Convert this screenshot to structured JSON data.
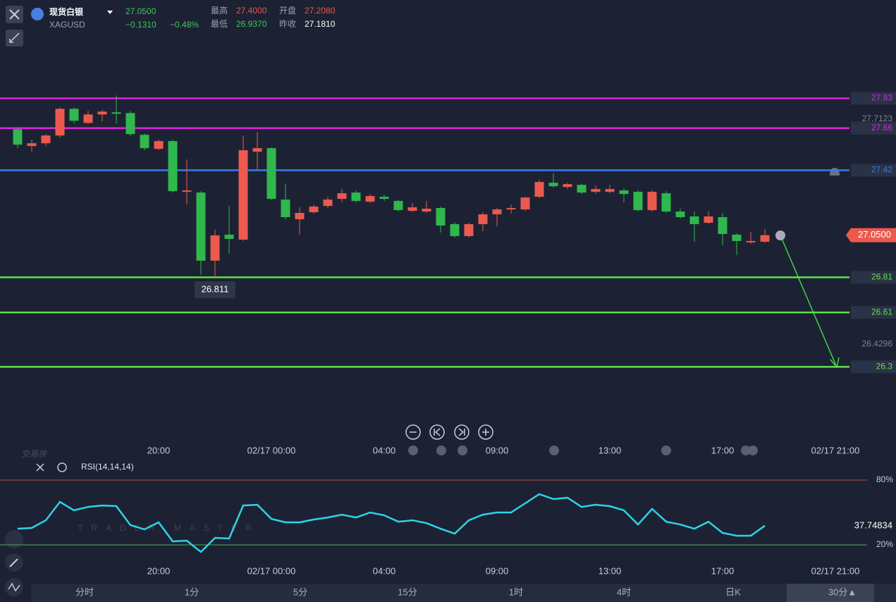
{
  "header": {
    "name": "现货白银",
    "symbol": "XAGUSD",
    "price": "27.0500",
    "change": "−0.1310",
    "change_pct": "−0.48%",
    "stats": [
      {
        "label": "最高",
        "value": "27.4000"
      },
      {
        "label": "开盘",
        "value": "27.2080"
      },
      {
        "label": "最低",
        "value": "26.9370"
      },
      {
        "label": "昨收",
        "value": "27.1810"
      }
    ]
  },
  "watermark": {
    "title": "交易侠",
    "subtitle": "TRADER MASTER"
  },
  "toolbar": {
    "items": [
      "分时",
      "1分",
      "5分",
      "15分",
      "1时",
      "4时",
      "日K",
      "30分▲"
    ]
  },
  "chart_data": [
    {
      "type": "candlestick",
      "up_color": "#ec5a4e",
      "down_color": "#2fb84c",
      "open": [
        27.654,
        27.558,
        27.574,
        27.618,
        27.77,
        27.69,
        27.738,
        27.75,
        27.746,
        27.622,
        27.542,
        27.586,
        27.297,
        27.293,
        26.905,
        27.053,
        27.025,
        27.526,
        27.546,
        27.253,
        27.141,
        27.181,
        27.217,
        27.257,
        27.293,
        27.241,
        27.269,
        27.245,
        27.189,
        27.185,
        27.205,
        27.113,
        27.045,
        27.113,
        27.169,
        27.197,
        27.197,
        27.269,
        27.349,
        27.325,
        27.337,
        27.297,
        27.297,
        27.305,
        27.297,
        27.193,
        27.289,
        27.185,
        27.157,
        27.121,
        27.153,
        27.053,
        27.009,
        27.013
      ],
      "high": [
        27.666,
        27.594,
        27.626,
        27.778,
        27.778,
        27.758,
        27.766,
        27.846,
        27.758,
        27.63,
        27.594,
        27.594,
        27.482,
        27.301,
        27.081,
        27.217,
        27.618,
        27.638,
        27.55,
        27.345,
        27.209,
        27.225,
        27.269,
        27.313,
        27.305,
        27.285,
        27.281,
        27.253,
        27.233,
        27.245,
        27.213,
        27.125,
        27.121,
        27.181,
        27.205,
        27.225,
        27.269,
        27.365,
        27.402,
        27.349,
        27.345,
        27.333,
        27.337,
        27.317,
        27.305,
        27.305,
        27.301,
        27.201,
        27.185,
        27.185,
        27.177,
        27.061,
        27.069,
        27.085
      ],
      "low": [
        27.546,
        27.526,
        27.558,
        27.606,
        27.686,
        27.682,
        27.698,
        27.686,
        27.614,
        27.534,
        27.534,
        27.293,
        27.225,
        26.825,
        26.811,
        26.945,
        27.017,
        27.422,
        27.249,
        27.141,
        27.053,
        27.173,
        27.205,
        27.237,
        27.237,
        27.233,
        27.245,
        27.185,
        27.181,
        27.177,
        27.065,
        27.037,
        27.037,
        27.073,
        27.101,
        27.173,
        27.189,
        27.261,
        27.321,
        27.313,
        27.285,
        27.285,
        27.289,
        27.237,
        27.185,
        27.185,
        27.177,
        27.145,
        27.013,
        27.113,
        26.993,
        26.937,
        27.001,
        27.005
      ],
      "close": [
        27.566,
        27.574,
        27.618,
        27.77,
        27.702,
        27.738,
        27.754,
        27.742,
        27.626,
        27.546,
        27.586,
        27.301,
        27.305,
        26.905,
        27.049,
        27.029,
        27.534,
        27.546,
        27.257,
        27.153,
        27.177,
        27.213,
        27.253,
        27.289,
        27.245,
        27.273,
        27.257,
        27.193,
        27.209,
        27.201,
        27.105,
        27.045,
        27.113,
        27.169,
        27.197,
        27.205,
        27.265,
        27.353,
        27.329,
        27.341,
        27.293,
        27.313,
        27.313,
        27.285,
        27.193,
        27.297,
        27.185,
        27.153,
        27.113,
        27.157,
        27.057,
        27.017,
        27.017,
        27.05
      ],
      "xlim": [
        -1.25,
        59
      ],
      "ylim": [
        25.88,
        28.39
      ],
      "xticks": [
        {
          "value": 10,
          "label": "20:00"
        },
        {
          "value": 18,
          "label": "02/17 00:00"
        },
        {
          "value": 26,
          "label": "04:00"
        },
        {
          "value": 34,
          "label": "09:00"
        },
        {
          "value": 42,
          "label": "13:00"
        },
        {
          "value": 50,
          "label": "17:00"
        },
        {
          "value": 58,
          "label": "02/17 21:00"
        }
      ],
      "yticks": [
        27.7123,
        26.4296
      ],
      "levels": [
        {
          "value": 27.83,
          "color": "#e020e0"
        },
        {
          "value": 27.66,
          "color": "#e020e0"
        },
        {
          "value": 27.42,
          "color": "#3b7ae8"
        },
        {
          "value": 26.81,
          "color": "#5ee04a"
        },
        {
          "value": 26.61,
          "color": "#5ee04a"
        },
        {
          "value": 26.3,
          "color": "#5ee04a"
        }
      ],
      "last_price": {
        "value": 27.05,
        "label": "27.0500"
      }
    },
    {
      "type": "line",
      "title": "RSI(14,14,14)",
      "color": "#2fd3e6",
      "values": [
        35.0,
        35.7,
        42.8,
        59.8,
        52.0,
        55.2,
        56.5,
        55.9,
        38.3,
        34.4,
        40.9,
        23.3,
        23.9,
        13.5,
        26.5,
        25.9,
        56.5,
        57.2,
        44.1,
        40.9,
        40.9,
        43.5,
        45.4,
        48.0,
        45.4,
        50.0,
        47.4,
        41.5,
        42.8,
        40.2,
        35.0,
        30.4,
        42.8,
        48.0,
        50.0,
        50.0,
        58.5,
        67.0,
        62.4,
        63.7,
        55.2,
        57.2,
        55.9,
        52.0,
        38.9,
        53.3,
        41.5,
        38.9,
        35.0,
        41.5,
        31.1,
        28.5,
        28.5,
        37.74834
      ],
      "xlim": [
        -1.25,
        59
      ],
      "ylim": [
        2.4,
        97
      ],
      "xticks": [
        {
          "value": 10,
          "label": "20:00"
        },
        {
          "value": 18,
          "label": "02/17 00:00"
        },
        {
          "value": 26,
          "label": "04:00"
        },
        {
          "value": 34,
          "label": "09:00"
        },
        {
          "value": 42,
          "label": "13:00"
        },
        {
          "value": 50,
          "label": "17:00"
        },
        {
          "value": 58,
          "label": "02/17 21:00"
        }
      ],
      "yticks": [
        {
          "value": 80,
          "label": "80%"
        },
        {
          "value": 20,
          "label": "20%"
        }
      ],
      "grid_colors": [
        "#b84b4b",
        "#4caf50"
      ]
    }
  ]
}
